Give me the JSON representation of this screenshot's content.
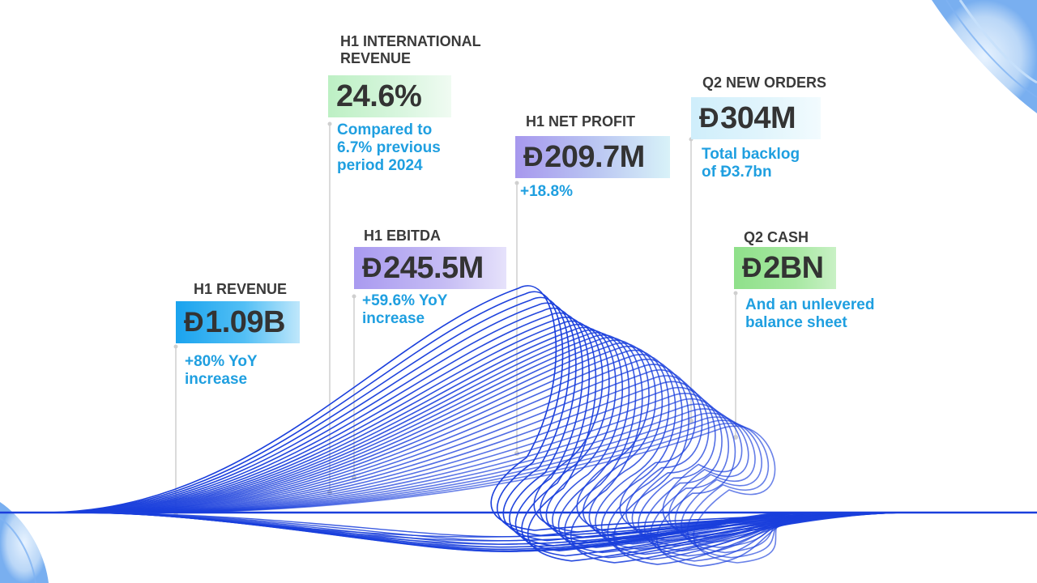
{
  "currency_symbol": "Đ",
  "colors": {
    "accent_blue": "#1f9fe0",
    "wave_blue": "#1a3fdc",
    "label_gray": "#3a3a3a"
  },
  "kpis": {
    "h1_revenue": {
      "label": "H1 REVENUE",
      "value": "1.09B",
      "note_lines": [
        "+80% YoY",
        "increase"
      ]
    },
    "h1_international_revenue": {
      "label_lines": [
        "H1 INTERNATIONAL",
        "REVENUE"
      ],
      "value": "24.6%",
      "note_lines": [
        "Compared to",
        "6.7% previous",
        "period 2024"
      ]
    },
    "h1_ebitda": {
      "label": "H1 EBITDA",
      "value": "245.5M",
      "note_lines": [
        "+59.6% YoY",
        "increase"
      ]
    },
    "h1_net_profit": {
      "label": "H1 NET PROFIT",
      "value": "209.7M",
      "note_lines": [
        "+18.8%"
      ]
    },
    "q2_new_orders": {
      "label": "Q2 NEW ORDERS",
      "value": "304M",
      "note_lines": [
        "Total backlog",
        "of Đ3.7bn"
      ]
    },
    "q2_cash": {
      "label": "Q2 CASH",
      "value": "2BN",
      "note_lines": [
        "And an unlevered",
        "balance sheet"
      ]
    }
  }
}
